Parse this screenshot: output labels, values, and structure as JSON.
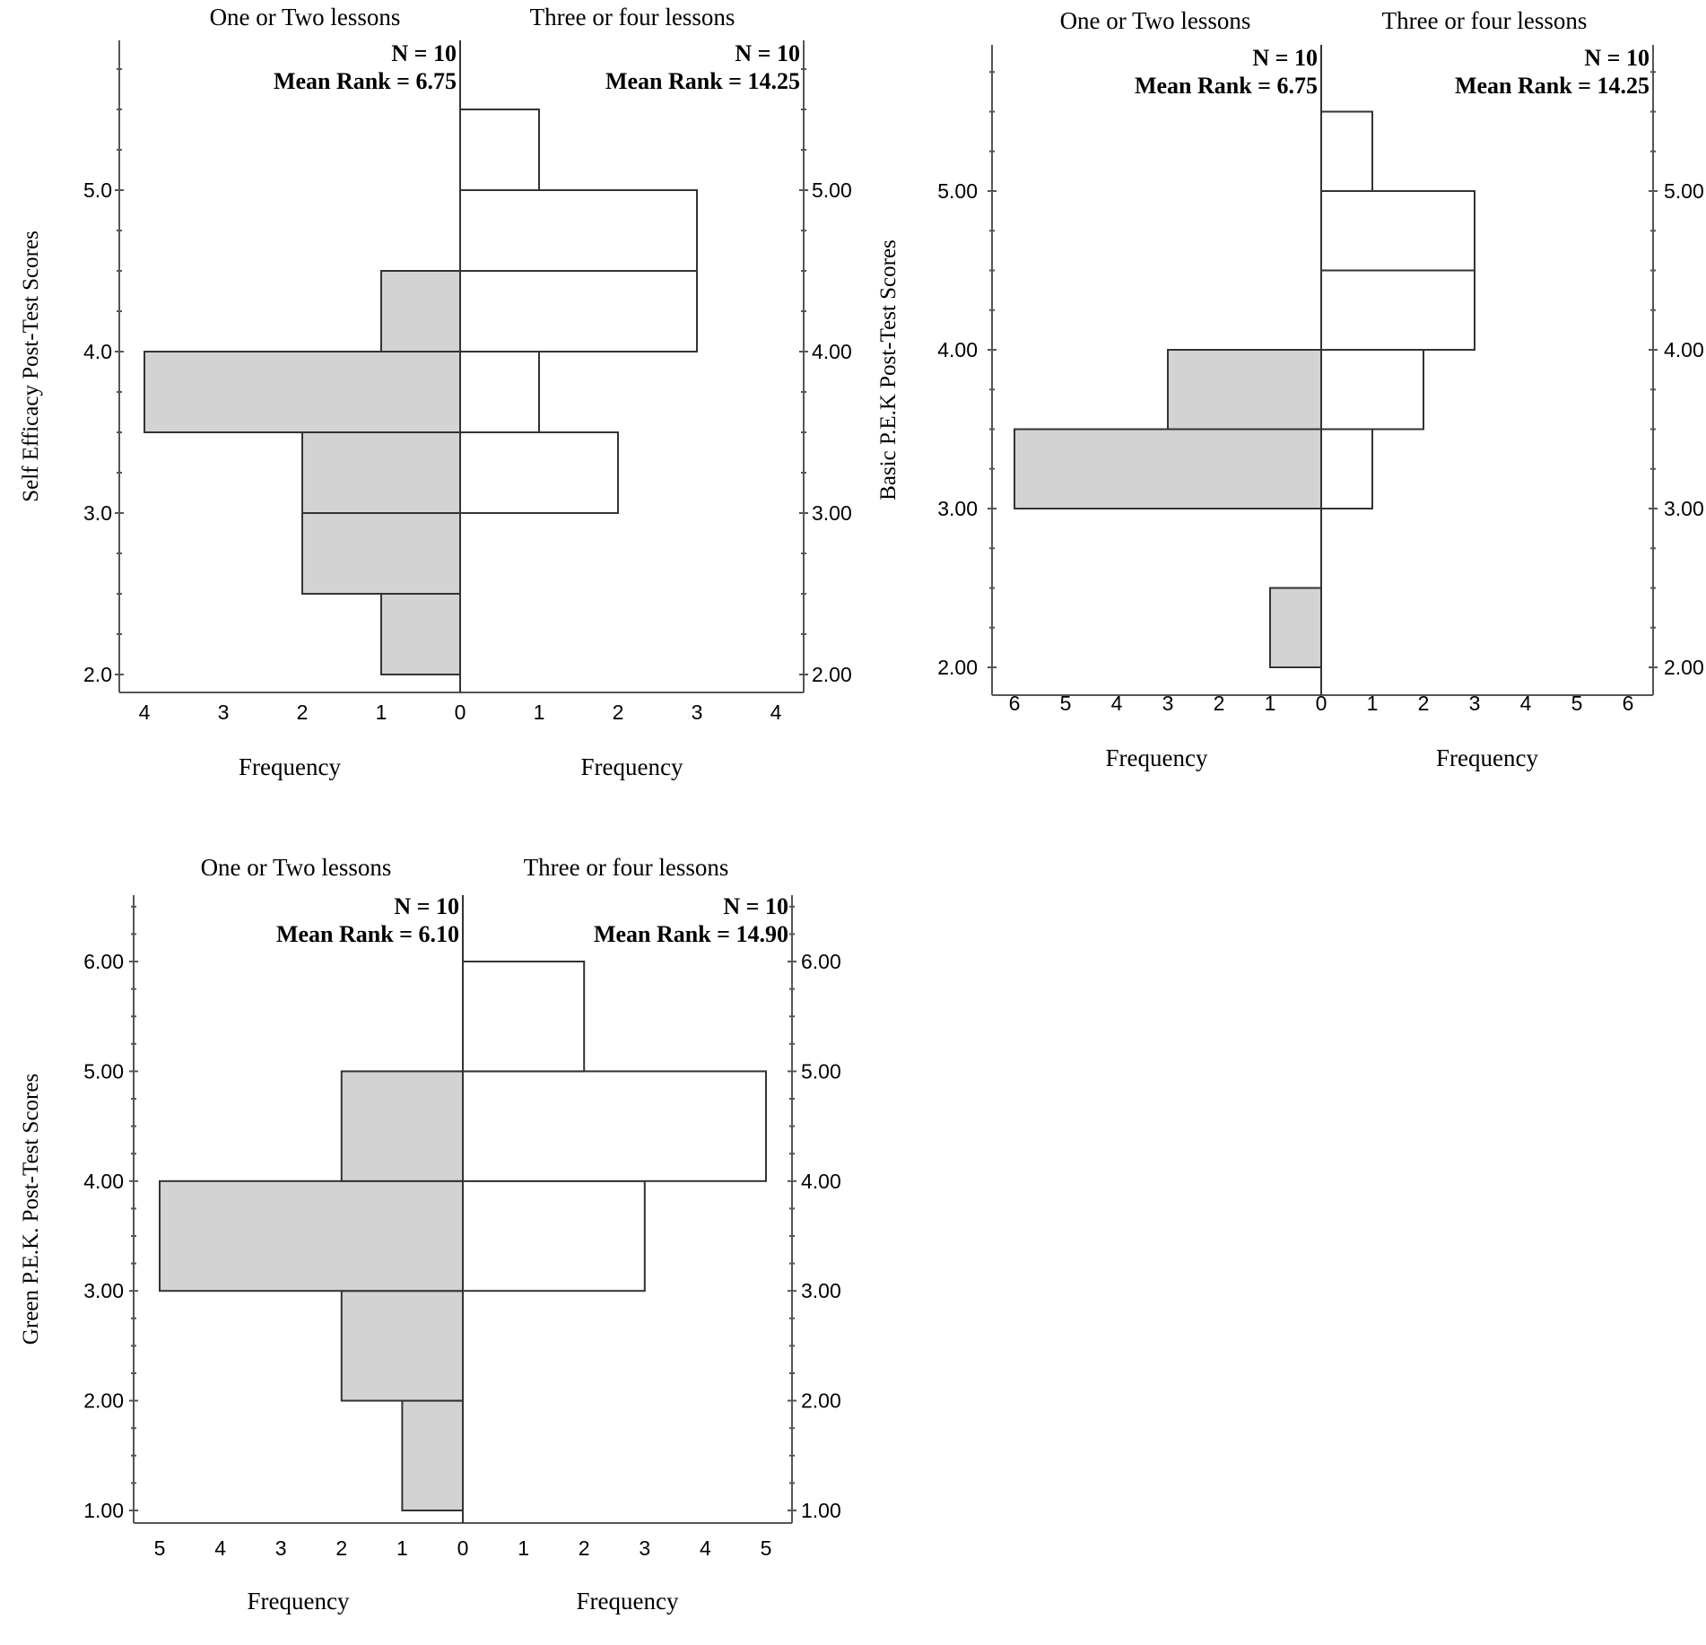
{
  "chart_data": [
    {
      "type": "bar",
      "subtype": "population-pyramid-histogram",
      "ylabel": "Self Efficacy Post-Test Scores",
      "xlabel_left": "Frequency",
      "xlabel_right": "Frequency",
      "ylim": [
        1.9,
        5.9
      ],
      "y_ticks": [
        2.0,
        3.0,
        4.0,
        5.0
      ],
      "y_tick_labels_left": [
        "2.0",
        "3.0",
        "4.0",
        "5.0"
      ],
      "y_tick_labels_right": [
        "2.00",
        "3.00",
        "4.00",
        "5.00"
      ],
      "xmax": 4,
      "x_ticks": [
        0,
        1,
        2,
        3,
        4
      ],
      "left_series": {
        "name": "One or Two lessons",
        "n_label": "N = 10",
        "mean_rank_label": "Mean Rank = 6.75",
        "bins": [
          {
            "from": 2.0,
            "to": 2.5,
            "count": 1
          },
          {
            "from": 2.5,
            "to": 3.0,
            "count": 2
          },
          {
            "from": 3.0,
            "to": 3.5,
            "count": 2
          },
          {
            "from": 3.5,
            "to": 4.0,
            "count": 4
          },
          {
            "from": 4.0,
            "to": 4.5,
            "count": 1
          }
        ]
      },
      "right_series": {
        "name": "Three or four lessons",
        "n_label": "N = 10",
        "mean_rank_label": "Mean Rank = 14.25",
        "bins": [
          {
            "from": 3.0,
            "to": 3.5,
            "count": 2
          },
          {
            "from": 3.5,
            "to": 4.0,
            "count": 1
          },
          {
            "from": 4.0,
            "to": 4.5,
            "count": 3
          },
          {
            "from": 4.5,
            "to": 5.0,
            "count": 3
          },
          {
            "from": 5.0,
            "to": 5.5,
            "count": 1
          }
        ]
      }
    },
    {
      "type": "bar",
      "subtype": "population-pyramid-histogram",
      "ylabel": "Basic P.E.K Post-Test Scores",
      "xlabel_left": "Frequency",
      "xlabel_right": "Frequency",
      "ylim": [
        1.9,
        5.9
      ],
      "y_ticks": [
        2.0,
        3.0,
        4.0,
        5.0
      ],
      "y_tick_labels_left": [
        "2.00",
        "3.00",
        "4.00",
        "5.00"
      ],
      "y_tick_labels_right": [
        "2.00",
        "3.00",
        "4.00",
        "5.00"
      ],
      "xmax": 6,
      "x_ticks": [
        0,
        1,
        2,
        3,
        4,
        5,
        6
      ],
      "left_series": {
        "name": "One or Two lessons",
        "n_label": "N = 10",
        "mean_rank_label": "Mean Rank = 6.75",
        "bins": [
          {
            "from": 2.0,
            "to": 2.5,
            "count": 1
          },
          {
            "from": 3.0,
            "to": 3.5,
            "count": 6
          },
          {
            "from": 3.5,
            "to": 4.0,
            "count": 3
          }
        ]
      },
      "right_series": {
        "name": "Three or four lessons",
        "n_label": "N = 10",
        "mean_rank_label": "Mean Rank = 14.25",
        "bins": [
          {
            "from": 3.0,
            "to": 3.5,
            "count": 1
          },
          {
            "from": 3.5,
            "to": 4.0,
            "count": 2
          },
          {
            "from": 4.0,
            "to": 4.5,
            "count": 3
          },
          {
            "from": 4.5,
            "to": 5.0,
            "count": 3
          },
          {
            "from": 5.0,
            "to": 5.5,
            "count": 1
          }
        ]
      }
    },
    {
      "type": "bar",
      "subtype": "population-pyramid-histogram",
      "ylabel": "Green P.E.K. Post-Test Scores",
      "xlabel_left": "Frequency",
      "xlabel_right": "Frequency",
      "ylim": [
        0.85,
        6.5
      ],
      "y_ticks": [
        1.0,
        2.0,
        3.0,
        4.0,
        5.0,
        6.0
      ],
      "y_tick_labels_left": [
        "1.00",
        "2.00",
        "3.00",
        "4.00",
        "5.00",
        "6.00"
      ],
      "y_tick_labels_right": [
        "1.00",
        "2.00",
        "3.00",
        "4.00",
        "5.00",
        "6.00"
      ],
      "xmax": 5,
      "x_ticks": [
        0,
        1,
        2,
        3,
        4,
        5
      ],
      "left_series": {
        "name": "One or Two lessons",
        "n_label": "N = 10",
        "mean_rank_label": "Mean Rank = 6.10",
        "bins": [
          {
            "from": 1.0,
            "to": 2.0,
            "count": 1
          },
          {
            "from": 2.0,
            "to": 3.0,
            "count": 2
          },
          {
            "from": 3.0,
            "to": 4.0,
            "count": 5
          },
          {
            "from": 4.0,
            "to": 5.0,
            "count": 2
          }
        ]
      },
      "right_series": {
        "name": "Three or four lessons",
        "n_label": "N = 10",
        "mean_rank_label": "Mean Rank = 14.90",
        "bins": [
          {
            "from": 3.0,
            "to": 4.0,
            "count": 3
          },
          {
            "from": 4.0,
            "to": 5.0,
            "count": 5
          },
          {
            "from": 5.0,
            "to": 6.0,
            "count": 2
          }
        ]
      }
    }
  ],
  "colors": {
    "left_fill": "#d3d3d3",
    "right_fill": "#ffffff",
    "stroke": "#333333",
    "axis": "#555555"
  }
}
